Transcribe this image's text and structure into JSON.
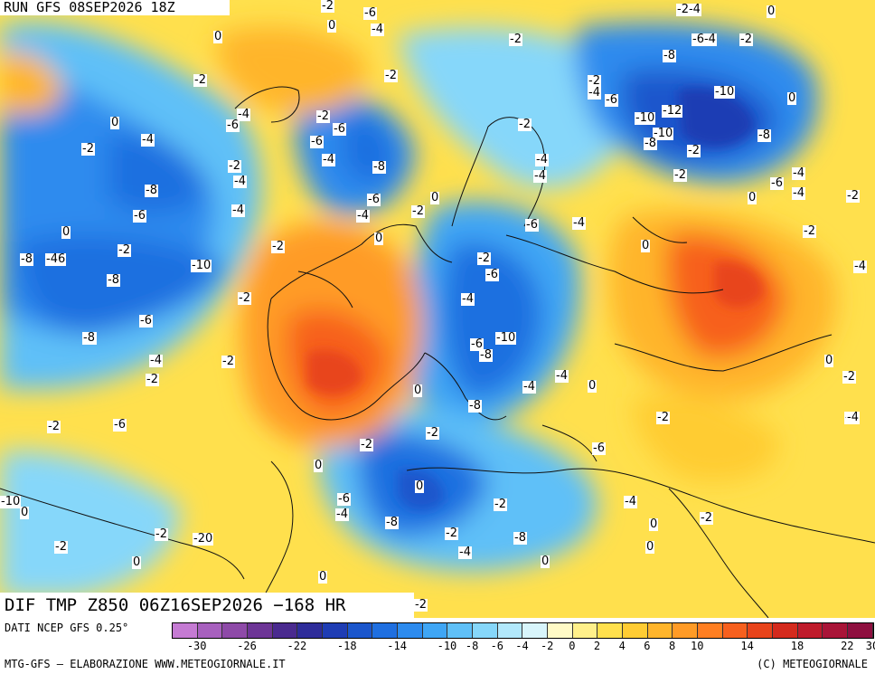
{
  "run_label": "RUN GFS 08SEP2026 18Z",
  "title": "DIF TMP Z850 06Z16SEP2026 −168 HR",
  "footer": {
    "source": "DATI NCEP GFS 0.25°",
    "credit_left": "MTG-GFS — ELABORAZIONE WWW.METEOGIORNALE.IT",
    "credit_right": "(C) METEOGIORNALE"
  },
  "colorbar": {
    "colors": [
      "#c57bd3",
      "#a760be",
      "#8e4aa8",
      "#6d3596",
      "#4a2a8f",
      "#2e2c9a",
      "#1f3db4",
      "#1b56cc",
      "#1f6fe0",
      "#2d8bee",
      "#3fa6f5",
      "#5fc0f8",
      "#86d7fa",
      "#b2e8fb",
      "#d8f5fb",
      "#fffac6",
      "#fff08a",
      "#ffe04d",
      "#ffcc33",
      "#ffb52b",
      "#ff9b26",
      "#ff7f22",
      "#f7601e",
      "#e8441b",
      "#d42a1d",
      "#bf1b2b",
      "#a91538",
      "#8f1040"
    ],
    "tick_labels": [
      "-30",
      "-26",
      "-22",
      "-18",
      "-14",
      "-10",
      "-8",
      "-6",
      "-4",
      "-2",
      "0",
      "2",
      "4",
      "6",
      "8",
      "10",
      "14",
      "18",
      "22",
      "30"
    ],
    "tick_index": [
      1,
      3,
      5,
      7,
      9,
      11,
      12,
      13,
      14,
      15,
      16,
      17,
      18,
      19,
      20,
      21,
      23,
      25,
      27,
      28
    ]
  },
  "labels": [
    {
      "t": "-2"
    },
    {
      "t": "-6"
    },
    {
      "t": "-2-4"
    },
    {
      "t": "0"
    },
    {
      "t": "0"
    },
    {
      "t": "0"
    },
    {
      "t": "-4"
    },
    {
      "t": "-2"
    },
    {
      "t": "-6-4"
    },
    {
      "t": "-2"
    },
    {
      "t": "-8"
    },
    {
      "t": "-2"
    },
    {
      "t": "-2"
    },
    {
      "t": "-2"
    },
    {
      "t": "-4"
    },
    {
      "t": "-10"
    },
    {
      "t": "0"
    },
    {
      "t": "-6"
    },
    {
      "t": "0"
    },
    {
      "t": "-4"
    },
    {
      "t": "-2"
    },
    {
      "t": "-6"
    },
    {
      "t": "-10"
    },
    {
      "t": "-12"
    },
    {
      "t": "0"
    },
    {
      "t": "-6"
    },
    {
      "t": "-2"
    },
    {
      "t": "-4"
    },
    {
      "t": "-10"
    },
    {
      "t": "-8"
    },
    {
      "t": "-8"
    },
    {
      "t": "-2"
    },
    {
      "t": "-6"
    },
    {
      "t": "-2"
    },
    {
      "t": "-4"
    },
    {
      "t": "-4"
    },
    {
      "t": "-8"
    },
    {
      "t": "-2"
    },
    {
      "t": "-4"
    },
    {
      "t": "-4"
    },
    {
      "t": "-4"
    },
    {
      "t": "-8"
    },
    {
      "t": "-2"
    },
    {
      "t": "-6"
    },
    {
      "t": "-4"
    },
    {
      "t": "0"
    },
    {
      "t": "-6"
    },
    {
      "t": "-4"
    },
    {
      "t": "0"
    },
    {
      "t": "-2"
    },
    {
      "t": "-6"
    },
    {
      "t": "-4"
    },
    {
      "t": "-2"
    },
    {
      "t": "0"
    },
    {
      "t": "0"
    },
    {
      "t": "-46"
    },
    {
      "t": "-8"
    },
    {
      "t": "-2"
    },
    {
      "t": "-2"
    },
    {
      "t": "-6"
    },
    {
      "t": "-4"
    },
    {
      "t": "0"
    },
    {
      "t": "-2"
    },
    {
      "t": "-10"
    },
    {
      "t": "-8"
    },
    {
      "t": "-2"
    },
    {
      "t": "-4"
    },
    {
      "t": "-6"
    },
    {
      "t": "-8"
    },
    {
      "t": "-4"
    },
    {
      "t": "-6"
    },
    {
      "t": "-10"
    },
    {
      "t": "-6"
    },
    {
      "t": "-2"
    },
    {
      "t": "-8"
    },
    {
      "t": "-8"
    },
    {
      "t": "-4"
    },
    {
      "t": "-2"
    },
    {
      "t": "-4"
    },
    {
      "t": "-2"
    },
    {
      "t": "0"
    },
    {
      "t": "0"
    },
    {
      "t": "-2"
    },
    {
      "t": "-2"
    },
    {
      "t": "-2"
    },
    {
      "t": "-4"
    },
    {
      "t": "0"
    },
    {
      "t": "-4"
    },
    {
      "t": "-2"
    },
    {
      "t": "-8"
    },
    {
      "t": "-6"
    },
    {
      "t": "-6"
    },
    {
      "t": "-2"
    },
    {
      "t": "0"
    },
    {
      "t": "0"
    },
    {
      "t": "0"
    },
    {
      "t": "-4"
    },
    {
      "t": "0"
    },
    {
      "t": "-10"
    },
    {
      "t": "-8"
    },
    {
      "t": "-2"
    },
    {
      "t": "-6"
    },
    {
      "t": "-2"
    },
    {
      "t": "-4"
    },
    {
      "t": "-4"
    },
    {
      "t": "-2"
    },
    {
      "t": "-2"
    },
    {
      "t": "-8"
    },
    {
      "t": "-4"
    },
    {
      "t": "-2"
    },
    {
      "t": "-20"
    },
    {
      "t": "0"
    },
    {
      "t": "0"
    },
    {
      "t": "0"
    },
    {
      "t": "0"
    },
    {
      "t": "-2"
    },
    {
      "t": "-6"
    },
    {
      "t": "-4"
    },
    {
      "t": "-2"
    },
    {
      "t": "-8"
    },
    {
      "t": "-4"
    },
    {
      "t": "-2"
    }
  ]
}
